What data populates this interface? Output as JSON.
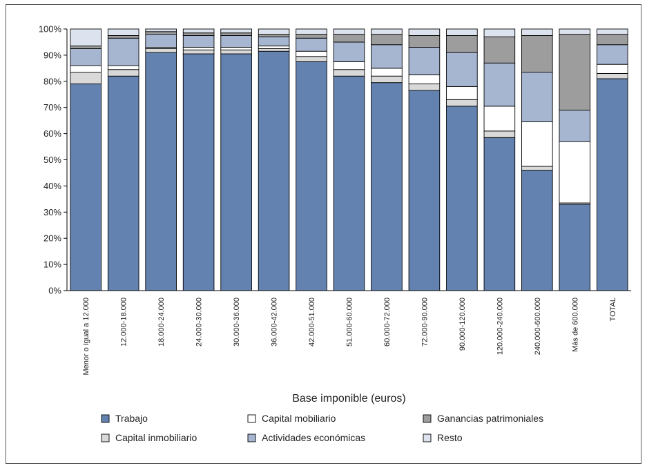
{
  "chart_data": {
    "type": "bar",
    "stacked": true,
    "percent": true,
    "title": "",
    "xlabel": "Base imponible (euros)",
    "ylabel": "",
    "ylim": [
      0,
      100
    ],
    "yticks": [
      "0%",
      "10%",
      "20%",
      "30%",
      "40%",
      "50%",
      "60%",
      "70%",
      "80%",
      "90%",
      "100%"
    ],
    "grid": false,
    "legend_position": "bottom",
    "categories": [
      "Menor o igual a 12.000",
      "12.000-18.000",
      "18.000-24.000",
      "24.000-30.000",
      "30.000-36.000",
      "36.000-42.000",
      "42.000-51.000",
      "51.000-60.000",
      "60.000-72.000",
      "72.000-90.000",
      "90.000-120.000",
      "120.000-240.000",
      "240.000-600.000",
      "Más de 600.000",
      "TOTAL"
    ],
    "series": [
      {
        "name": "Trabajo",
        "color": "#6382b0",
        "values": [
          79,
          82,
          91,
          90.5,
          90.5,
          91.5,
          87.5,
          82,
          79.5,
          76.5,
          70.5,
          58.5,
          46,
          33,
          81
        ]
      },
      {
        "name": "Capital inmobiliario",
        "color": "#d9d9d9",
        "values": [
          4.5,
          2.5,
          1.5,
          1.5,
          1.5,
          1,
          2,
          2.5,
          2.5,
          2.5,
          2.5,
          2.5,
          1.5,
          0.5,
          2
        ]
      },
      {
        "name": "Capital mobiliario",
        "color": "#ffffff",
        "values": [
          2.5,
          1.5,
          0.5,
          1,
          1,
          1,
          2,
          3,
          3,
          3.5,
          5,
          9.5,
          17,
          23.5,
          3.5
        ]
      },
      {
        "name": "Actividades económicas",
        "color": "#a6b6d1",
        "values": [
          6.5,
          10.5,
          5,
          4.5,
          4.5,
          3.5,
          5,
          7.5,
          9,
          10.5,
          13,
          16.5,
          19,
          12,
          7.5
        ]
      },
      {
        "name": "Ganancias patrimoniales",
        "color": "#9d9d9d",
        "values": [
          1,
          1,
          1,
          1,
          1,
          1,
          1.5,
          3,
          4,
          4.5,
          6.5,
          10,
          14,
          29,
          4
        ]
      },
      {
        "name": "Resto",
        "color": "#dde3ee",
        "values": [
          6.5,
          2.5,
          1,
          1.5,
          1.5,
          2,
          2,
          2,
          2,
          2.5,
          2.5,
          3,
          2.5,
          2,
          2
        ]
      }
    ],
    "legend_order": [
      "Trabajo",
      "Capital mobiliario",
      "Ganancias patrimoniales",
      "Capital inmobiliario",
      "Actividades económicas",
      "Resto"
    ]
  }
}
